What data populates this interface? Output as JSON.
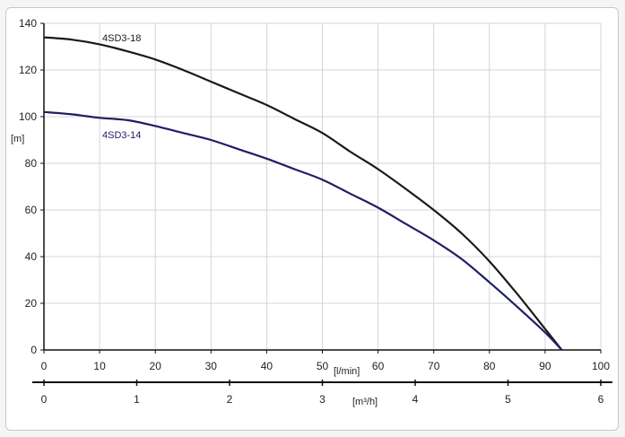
{
  "chart_data": {
    "type": "line",
    "y_unit": "[m]",
    "x_unit": "[l/min]",
    "x2_unit": "[m³/h]",
    "xlim": [
      0,
      100
    ],
    "ylim": [
      0,
      140
    ],
    "x_ticks": [
      0,
      10,
      20,
      30,
      40,
      50,
      60,
      70,
      80,
      90,
      100
    ],
    "y_ticks": [
      0,
      20,
      40,
      60,
      80,
      100,
      120,
      140
    ],
    "x2_ticks": [
      0,
      1,
      2,
      3,
      4,
      5,
      6
    ],
    "x2_lim": [
      0,
      6
    ],
    "grid": true,
    "series": [
      {
        "name": "4SD3-18",
        "color": "#1a1a1a",
        "x": [
          0,
          5,
          10,
          15,
          20,
          25,
          30,
          35,
          40,
          45,
          50,
          55,
          60,
          65,
          70,
          75,
          80,
          85,
          90,
          93
        ],
        "y": [
          134,
          133,
          131,
          128,
          124.5,
          120,
          115,
          110,
          105,
          99,
          93,
          85,
          77.5,
          69,
          60,
          50,
          38,
          24,
          9,
          0
        ]
      },
      {
        "name": "4SD3-14",
        "color": "#1f1f66",
        "x": [
          0,
          5,
          10,
          15,
          20,
          25,
          30,
          35,
          40,
          45,
          50,
          55,
          60,
          65,
          70,
          75,
          80,
          85,
          90,
          93
        ],
        "y": [
          102,
          101,
          99.5,
          98.5,
          96,
          93,
          90,
          86,
          82,
          77.5,
          73,
          67,
          61,
          54,
          47,
          39,
          29,
          18.5,
          7.5,
          0
        ]
      }
    ]
  }
}
